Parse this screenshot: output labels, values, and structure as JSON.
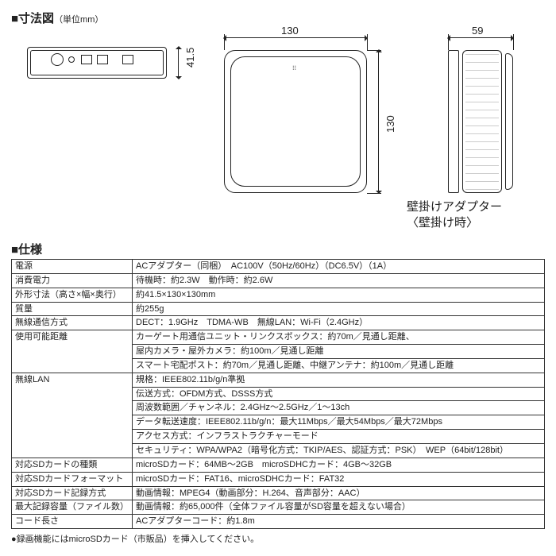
{
  "titles": {
    "diagram": "■寸法図",
    "diagram_unit": "（単位mm）",
    "spec": "■仕様"
  },
  "dims": {
    "top_width": "130",
    "side_width": "59",
    "body_height": "130",
    "top_height": "41.5"
  },
  "annotation": {
    "line1": "壁掛けアダプター",
    "line2": "〈壁掛け時〉"
  },
  "spec_rows": [
    {
      "label": "電源",
      "value": "ACアダプター（同梱）　AC100V（50Hz/60Hz）（DC6.5V）（1A）"
    },
    {
      "label": "消費電力",
      "value": "待機時：約2.3W　動作時：約2.6W"
    },
    {
      "label": "外形寸法（高さ×幅×奥行）",
      "value": "約41.5×130×130mm"
    },
    {
      "label": "質量",
      "value": "約255g"
    },
    {
      "label": "無線通信方式",
      "value": "DECT：1.9GHz　TDMA-WB　無線LAN：Wi-Fi（2.4GHz）"
    },
    {
      "label": "使用可能距離",
      "value": "カーゲート用通信ユニット・リンクスボックス：約70m／見通し距離、\n屋内カメラ・屋外カメラ：約100m／見通し距離\nスマート宅配ポスト：約70m／見通し距離、中継アンテナ：約100m／見通し距離"
    },
    {
      "label": "無線LAN",
      "value": "規格：IEEE802.11b/g/n準拠\n伝送方式：OFDM方式、DSSS方式\n周波数範囲／チャンネル：2.4GHz～2.5GHz／1～13ch\nデータ転送速度：IEEE802.11b/g/n：最大11Mbps／最大54Mbps／最大72Mbps\nアクセス方式：インフラストラクチャーモード\nセキュリティ：WPA/WPA2（暗号化方式：TKIP/AES、認証方式：PSK）　WEP（64bit/128bit）"
    },
    {
      "label": "対応SDカードの種類",
      "value": "microSDカード：64MB～2GB　microSDHCカード：4GB～32GB"
    },
    {
      "label": "対応SDカードフォーマット",
      "value": "microSDカード：FAT16、microSDHCカード：FAT32"
    },
    {
      "label": "対応SDカード記録方式",
      "value": "動画情報：MPEG4（動画部分：H.264、音声部分：AAC）"
    },
    {
      "label": "最大記録容量（ファイル数）",
      "value": "動画情報：約65,000件（全体ファイル容量がSD容量を超えない場合）"
    },
    {
      "label": "コード長さ",
      "value": "ACアダプターコード：約1.8m"
    }
  ],
  "footnote": "●録画機能にはmicroSDカード（市販品）を挿入してください。",
  "style": {
    "text_color": "#222222",
    "border_color": "#333333",
    "bg_color": "#ffffff",
    "title_fontsize_pt": 11,
    "table_fontsize_pt": 8
  }
}
